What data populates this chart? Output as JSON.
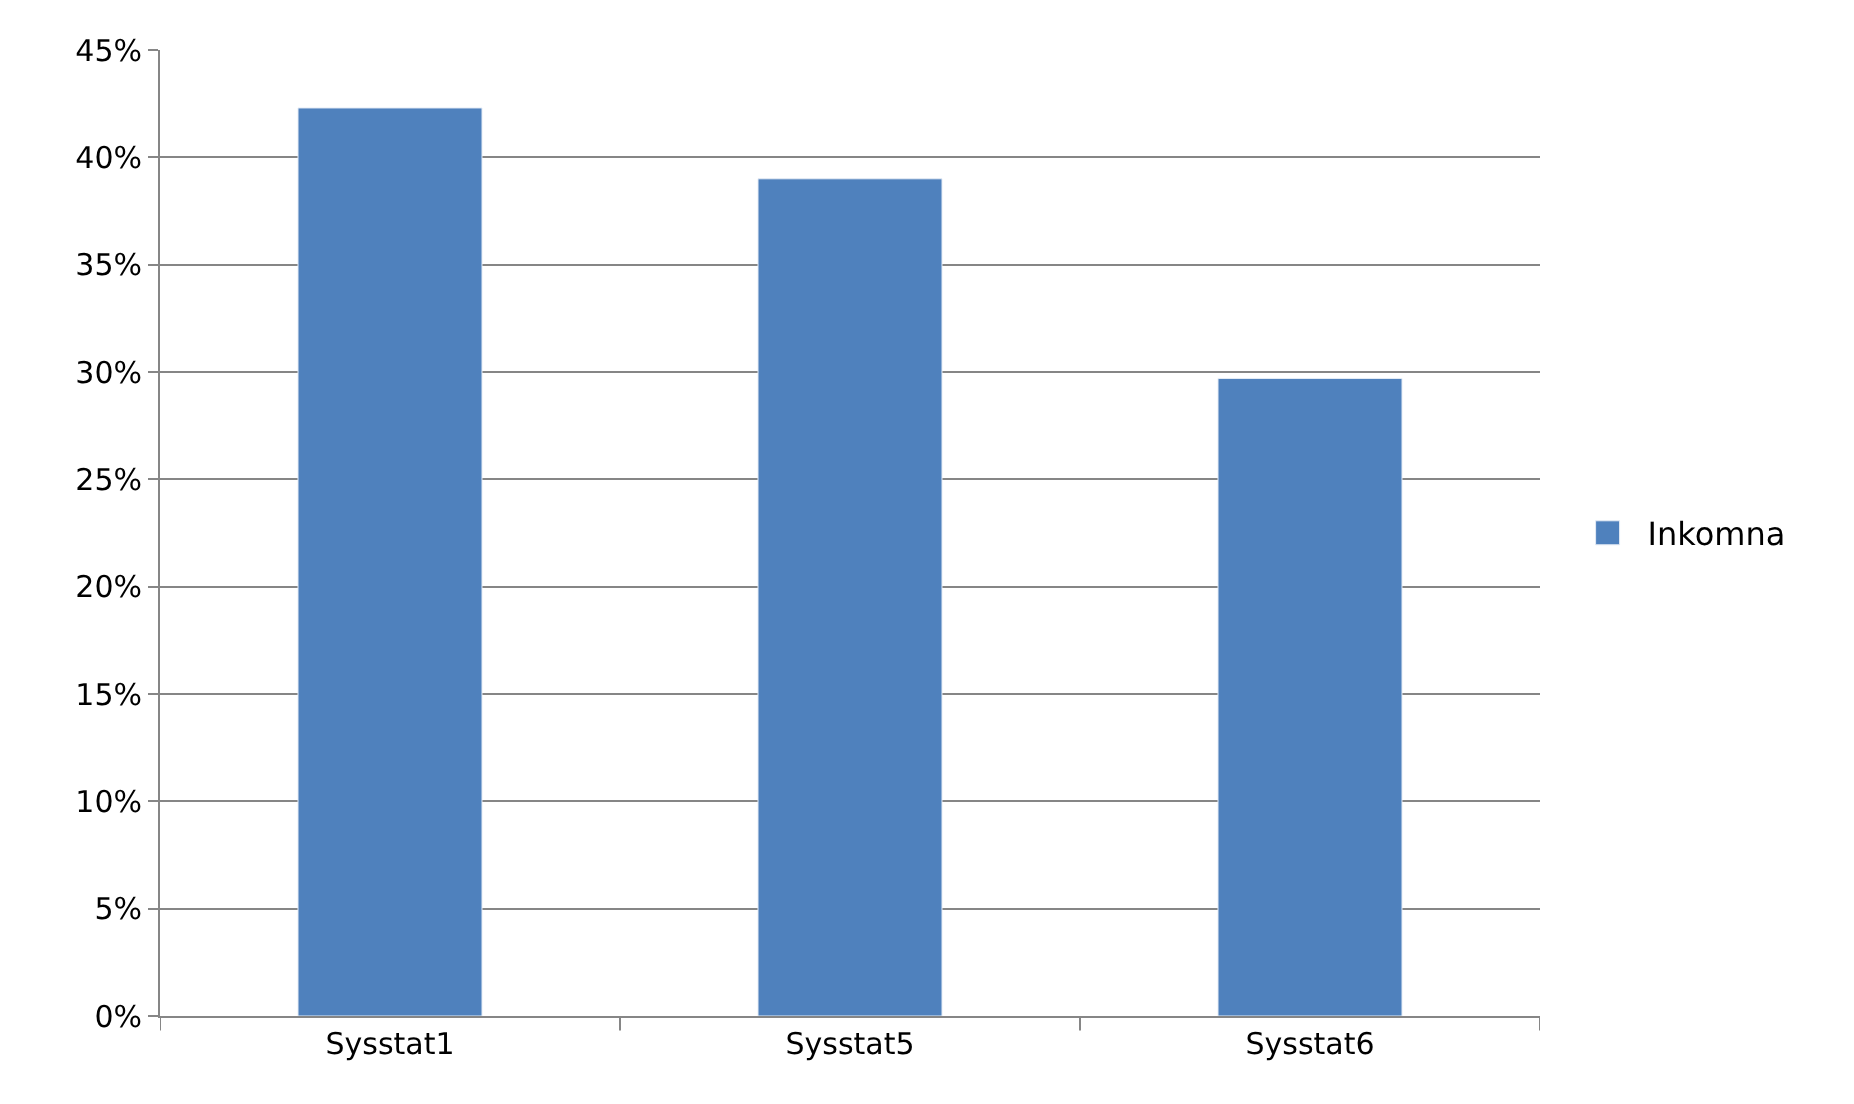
{
  "chart_data": {
    "type": "bar",
    "categories": [
      "Sysstat1",
      "Sysstat5",
      "Sysstat6"
    ],
    "series": [
      {
        "name": "Inkomna",
        "color": "#4f81bd",
        "values": [
          42.3,
          39.0,
          29.7
        ]
      }
    ],
    "ylim": [
      0,
      45
    ],
    "yticks": [
      {
        "value": 0,
        "label": "0%"
      },
      {
        "value": 5,
        "label": "5%"
      },
      {
        "value": 10,
        "label": "10%"
      },
      {
        "value": 15,
        "label": "15%"
      },
      {
        "value": 20,
        "label": "20%"
      },
      {
        "value": 25,
        "label": "25%"
      },
      {
        "value": 30,
        "label": "30%"
      },
      {
        "value": 35,
        "label": "35%"
      },
      {
        "value": 40,
        "label": "40%"
      },
      {
        "value": 45,
        "label": "45%"
      }
    ],
    "grid": "y",
    "legend": "right"
  }
}
